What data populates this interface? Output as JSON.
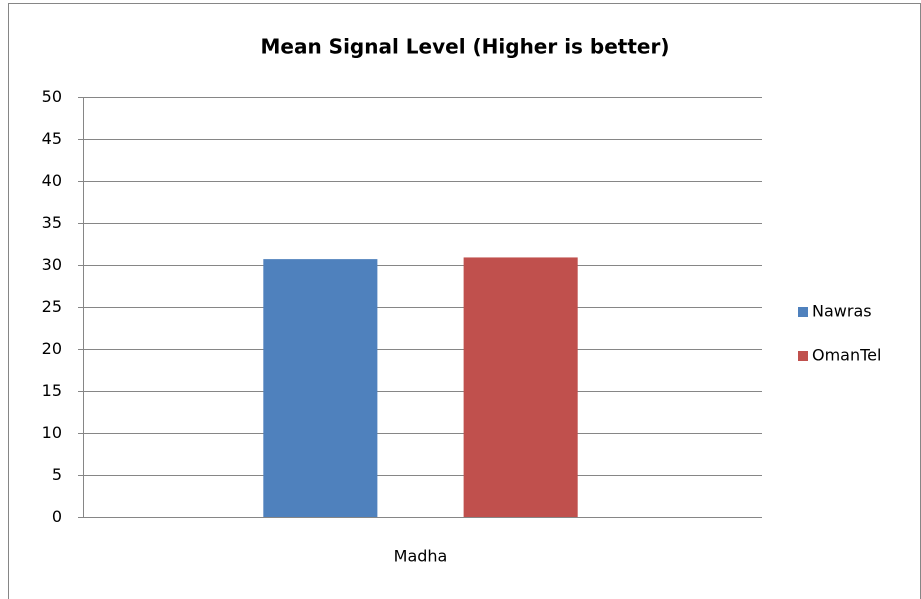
{
  "chart_data": {
    "type": "bar",
    "title": "Mean  Signal Level  (Higher  is better)",
    "categories": [
      "Madha"
    ],
    "series": [
      {
        "name": "Nawras",
        "color": "#4f81bd",
        "values": [
          30.7
        ]
      },
      {
        "name": "OmanTel",
        "color": "#c0504d",
        "values": [
          30.9
        ]
      }
    ],
    "ylim": [
      0,
      50
    ],
    "yticks": [
      0,
      5,
      10,
      15,
      20,
      25,
      30,
      35,
      40,
      45,
      50
    ],
    "grid": true,
    "legend": "right"
  }
}
